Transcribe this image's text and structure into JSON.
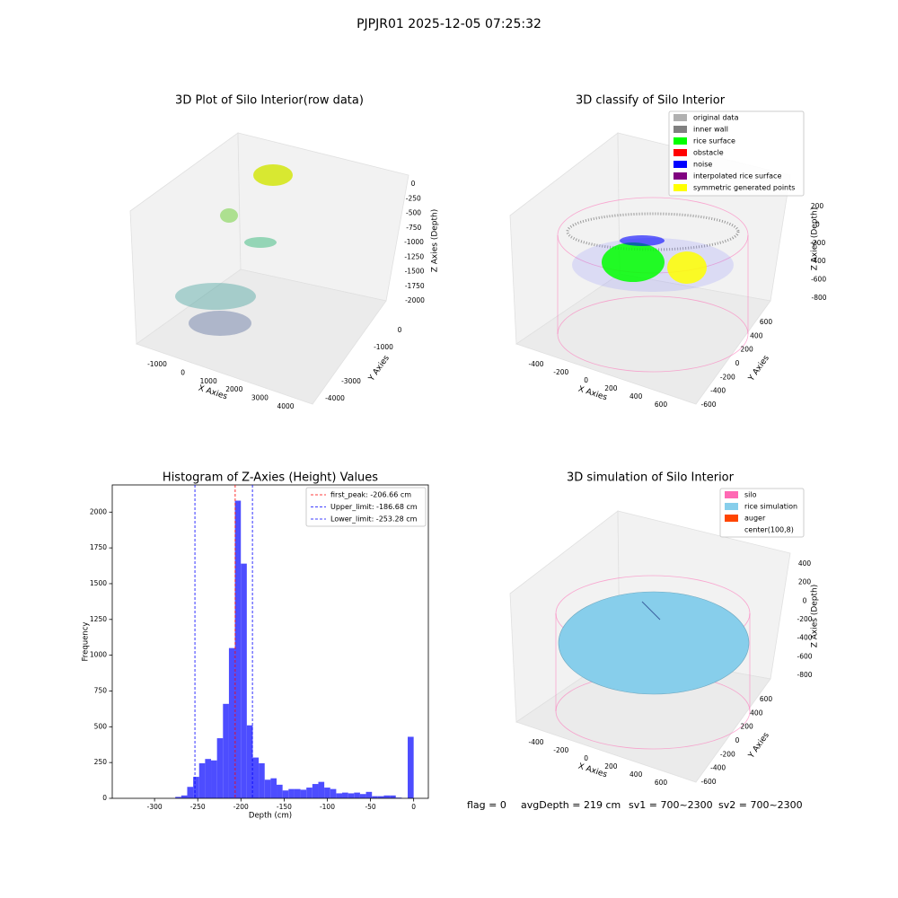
{
  "suptitle": "PJPJR01 2025-12-05 07:25:32",
  "status": [
    "flag = 0",
    "avgDepth = 219 cm",
    "sv1 = 700~2300",
    "sv2 = 700~2300"
  ],
  "chart_data": [
    {
      "type": "scatter3d",
      "title": "3D Plot of Silo Interior(row data)",
      "xlabel": "X Axies",
      "ylabel": "Y Axies",
      "zlabel": "Z Axies (Depth)",
      "xticks": [
        -1000,
        0,
        1000,
        2000,
        3000,
        4000
      ],
      "yticks": [
        -4000,
        -3000,
        -1000,
        0
      ],
      "zticks": [
        0,
        -250,
        -500,
        -750,
        -1000,
        -1250,
        -1500,
        -1750,
        -2000
      ]
    },
    {
      "type": "scatter3d",
      "title": "3D classify of Silo Interior",
      "xlabel": "X Axies",
      "ylabel": "Y Axies",
      "zlabel": "Z Axies (Depth)",
      "xticks": [
        -400,
        -200,
        0,
        200,
        400,
        600
      ],
      "yticks": [
        -600,
        -400,
        -200,
        0,
        200,
        400,
        600
      ],
      "zticks": [
        200,
        0,
        -200,
        -400,
        -600,
        -800
      ],
      "legend": [
        {
          "name": "original data",
          "color": "#b0b0b0"
        },
        {
          "name": "inner wall",
          "color": "#808080"
        },
        {
          "name": "rice surface",
          "color": "#00ff00"
        },
        {
          "name": "obstacle",
          "color": "#ff0000"
        },
        {
          "name": "noise",
          "color": "#0000ff"
        },
        {
          "name": "interpolated rice surface",
          "color": "#800080"
        },
        {
          "name": "symmetric generated points",
          "color": "#ffff00"
        }
      ]
    },
    {
      "type": "histogram",
      "title": "Histogram of Z-Axies (Height) Values",
      "xlabel": "Depth (cm)",
      "ylabel": "Frequency",
      "color": "#4d4dff",
      "bins": [
        -276,
        -269.1,
        -262.2,
        -255.3,
        -248.4,
        -241.5,
        -234.6,
        -227.7,
        -220.8,
        -213.9,
        -207,
        -200.1,
        -193.2,
        -186.3,
        -179.4,
        -172.5,
        -165.6,
        -158.7,
        -151.8,
        -144.9,
        -138,
        -131.1,
        -124.2,
        -117.3,
        -110.4,
        -103.5,
        -96.6,
        -89.7,
        -82.8,
        -75.9,
        -69,
        -62.1,
        -55.2,
        -48.3,
        -41.4,
        -34.5,
        -27.6,
        -20.7,
        -13.8,
        -6.9,
        0
      ],
      "values": [
        10,
        20,
        80,
        150,
        245,
        275,
        265,
        420,
        660,
        1050,
        2080,
        1640,
        510,
        285,
        245,
        130,
        140,
        95,
        55,
        65,
        65,
        60,
        75,
        100,
        115,
        75,
        65,
        35,
        40,
        35,
        40,
        30,
        45,
        15,
        15,
        20,
        20,
        5,
        0,
        430
      ],
      "xlim": [
        -349,
        17
      ],
      "ylim": [
        0,
        2190
      ],
      "xticks": [
        -300,
        -250,
        -200,
        -150,
        -100,
        -50,
        0
      ],
      "yticks": [
        0,
        250,
        500,
        750,
        1000,
        1250,
        1500,
        1750,
        2000
      ],
      "vlines": [
        {
          "name": "first_peak: -206.66 cm",
          "value": -206.66,
          "color": "#ff0000"
        },
        {
          "name": "Upper_limit: -186.68 cm",
          "value": -186.68,
          "color": "#0000ff"
        },
        {
          "name": "Lower_limit: -253.28 cm",
          "value": -253.28,
          "color": "#0000ff"
        }
      ],
      "legend_position": "upper right"
    },
    {
      "type": "surface3d",
      "title": "3D simulation of Silo Interior",
      "xlabel": "X Axies",
      "ylabel": "Y Axies",
      "zlabel": "Z Axies (Depth)",
      "xticks": [
        -400,
        -200,
        0,
        200,
        400,
        600
      ],
      "yticks": [
        -600,
        -400,
        -200,
        0,
        200,
        400,
        600
      ],
      "zticks": [
        400,
        200,
        0,
        -200,
        -400,
        -600,
        -800
      ],
      "legend": [
        {
          "name": "silo",
          "color": "#ff69b4"
        },
        {
          "name": "rice simulation",
          "color": "#87ceeb"
        },
        {
          "name": "auger",
          "color": "#ff4500"
        },
        {
          "name": "center(100,8)"
        }
      ]
    }
  ]
}
